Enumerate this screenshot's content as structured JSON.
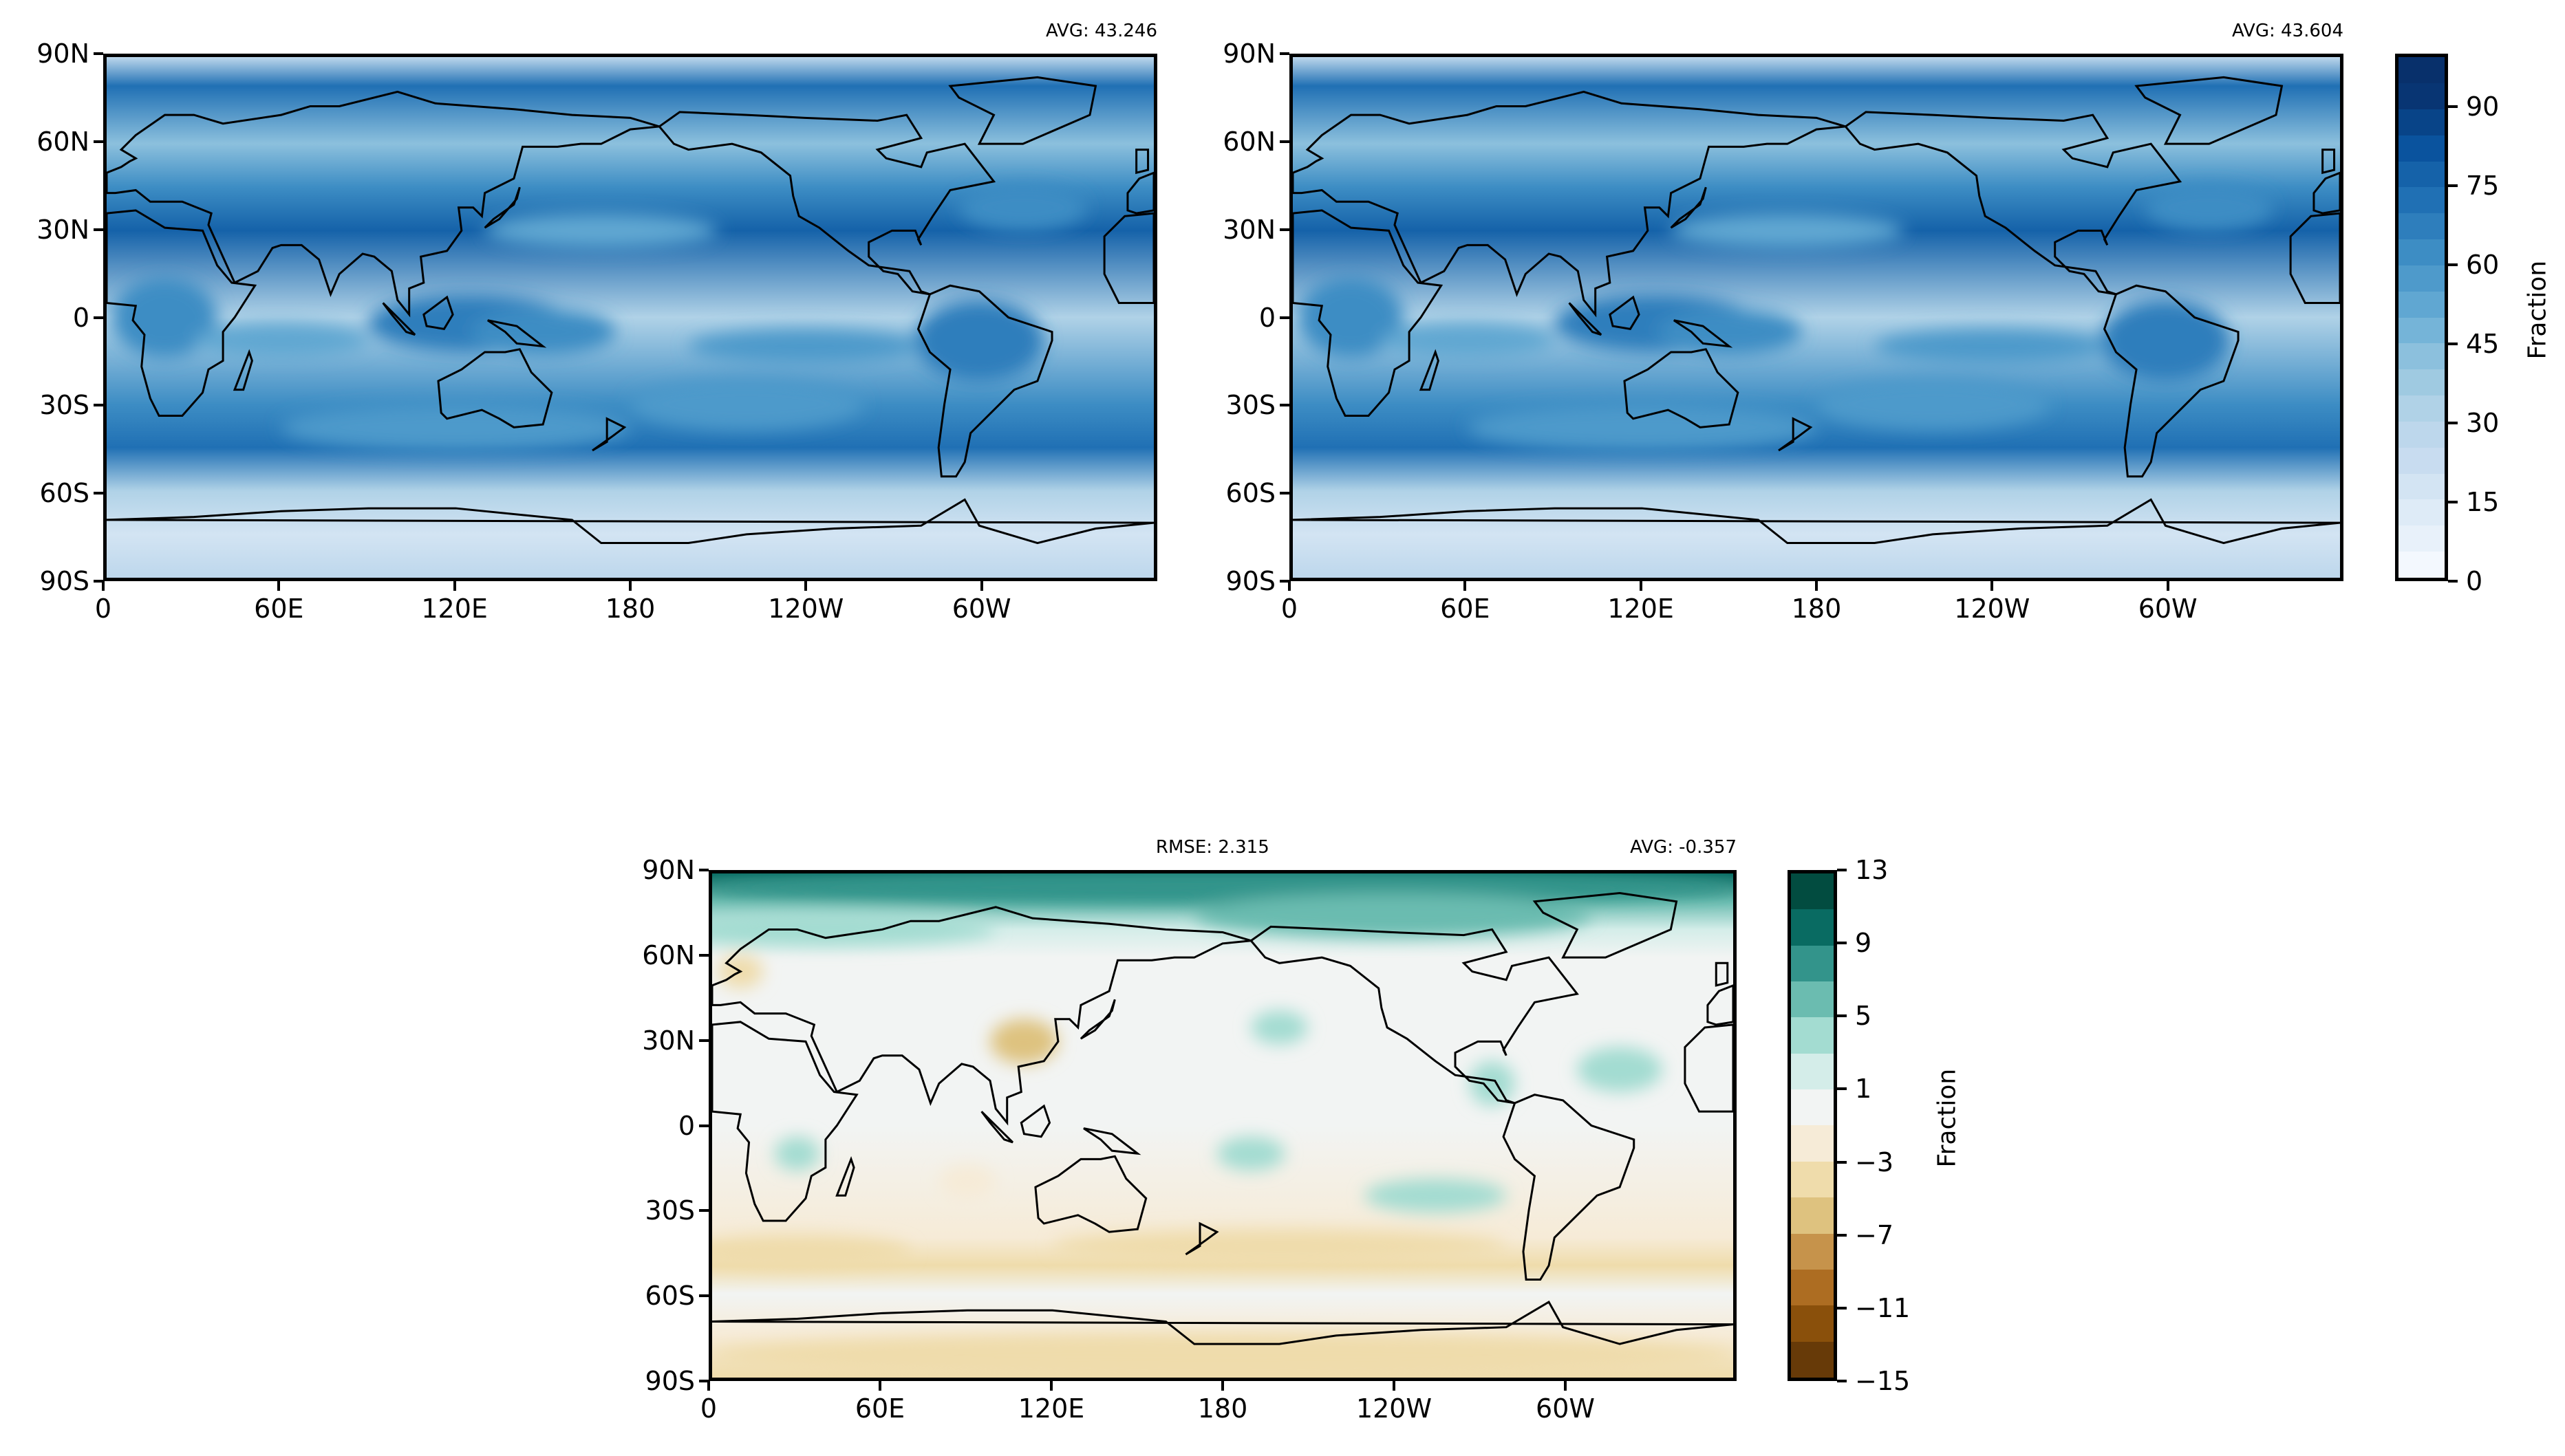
{
  "chart_data": [
    {
      "type": "heatmap",
      "subtype": "filled-contour-map",
      "stat_right": "AVG: 43.246",
      "lat_ticks": [
        90,
        60,
        30,
        0,
        -30,
        -60,
        -90
      ],
      "lat_tick_labels": [
        "90N",
        "60N",
        "30N",
        "0",
        "30S",
        "60S",
        "90S"
      ],
      "lon_ticks": [
        0,
        60,
        120,
        180,
        240,
        300
      ],
      "lon_tick_labels": [
        "0",
        "60E",
        "120E",
        "180",
        "120W",
        "60W"
      ],
      "xlim": [
        0,
        360
      ],
      "ylim": [
        -90,
        90
      ],
      "colormap": "Blues",
      "colorbar_shared": 0
    },
    {
      "type": "heatmap",
      "subtype": "filled-contour-map",
      "stat_right": "AVG: 43.604",
      "lat_ticks": [
        90,
        60,
        30,
        0,
        -30,
        -60,
        -90
      ],
      "lat_tick_labels": [
        "90N",
        "60N",
        "30N",
        "0",
        "30S",
        "60S",
        "90S"
      ],
      "lon_ticks": [
        0,
        60,
        120,
        180,
        240,
        300
      ],
      "lon_tick_labels": [
        "0",
        "60E",
        "120E",
        "180",
        "120W",
        "60W"
      ],
      "xlim": [
        0,
        360
      ],
      "ylim": [
        -90,
        90
      ],
      "colormap": "Blues"
    },
    {
      "type": "heatmap",
      "subtype": "filled-contour-map",
      "stat_left": "RMSE: 2.315",
      "stat_right": "AVG: -0.357",
      "lat_ticks": [
        90,
        60,
        30,
        0,
        -30,
        -60,
        -90
      ],
      "lat_tick_labels": [
        "90N",
        "60N",
        "30N",
        "0",
        "30S",
        "60S",
        "90S"
      ],
      "lon_ticks": [
        0,
        60,
        120,
        180,
        240,
        300
      ],
      "lon_tick_labels": [
        "0",
        "60E",
        "120E",
        "180",
        "120W",
        "60W"
      ],
      "xlim": [
        0,
        360
      ],
      "ylim": [
        -90,
        90
      ],
      "colormap": "BrBG"
    }
  ],
  "colorbars": [
    {
      "label": "Fraction",
      "range": [
        0,
        100
      ],
      "ticks": [
        0,
        15,
        30,
        45,
        60,
        75,
        90
      ],
      "tick_labels": [
        "0",
        "15",
        "30",
        "45",
        "60",
        "75",
        "90"
      ],
      "colors": [
        "#f3f8fe",
        "#e8f1fa",
        "#deebf7",
        "#d3e4f3",
        "#c8dcf0",
        "#bdd7ec",
        "#b0d2e7",
        "#9fcae1",
        "#8cc0dd",
        "#75b4d8",
        "#60a7d2",
        "#4e9acb",
        "#3d8dc4",
        "#2e7ebc",
        "#2070b4",
        "#1562a9",
        "#0a539e",
        "#084488",
        "#083573",
        "#08306b"
      ]
    },
    {
      "label": "Fraction",
      "range": [
        -15,
        13
      ],
      "ticks": [
        -15,
        -11,
        -7,
        -3,
        1,
        5,
        9,
        13
      ],
      "tick_labels": [
        "−15",
        "−11",
        "−7",
        "−3",
        "1",
        "5",
        "9",
        "13"
      ],
      "colors": [
        "#673a08",
        "#8a500b",
        "#ad6d22",
        "#c6934b",
        "#dec27f",
        "#efdcab",
        "#f6ebd7",
        "#f2f4f3",
        "#d4ede9",
        "#a3dcd1",
        "#6bbcb0",
        "#33948b",
        "#096b62",
        "#024c40"
      ]
    }
  ]
}
